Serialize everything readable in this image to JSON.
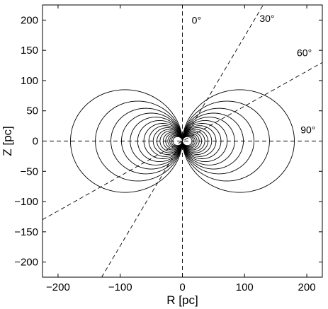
{
  "chart_data": {
    "type": "line",
    "title": "",
    "xlabel": "R [pc]",
    "ylabel": "Z [pc]",
    "xlim": [
      -225,
      225
    ],
    "ylim": [
      -225,
      225
    ],
    "grid": false,
    "xticks": [
      -200,
      -100,
      0,
      100,
      200
    ],
    "xtick_labels": [
      "−200",
      "−100",
      "0",
      "100",
      "200"
    ],
    "yticks": [
      200,
      150,
      100,
      50,
      0,
      -50,
      -100,
      -150,
      -200
    ],
    "ytick_labels": [
      "200",
      "150",
      "100",
      "50",
      "0",
      "−50",
      "−100",
      "−150",
      "−200"
    ],
    "contour_equatorial_radii": [
      180,
      140,
      115,
      98,
      84,
      72,
      62,
      54,
      47,
      41,
      36,
      31,
      27,
      23.5,
      20.5,
      18,
      15.5
    ],
    "reference_lines": [
      {
        "label": "0°",
        "angle_from_z_axis_deg": 0,
        "label_at": [
          15,
          194
        ]
      },
      {
        "label": "30°",
        "angle_from_z_axis_deg": 30,
        "label_at": [
          124,
          197
        ]
      },
      {
        "label": "60°",
        "angle_from_z_axis_deg": 60,
        "label_at": [
          184,
          140
        ]
      },
      {
        "label": "90°",
        "angle_from_z_axis_deg": 90,
        "label_at": [
          190,
          13
        ]
      }
    ]
  }
}
